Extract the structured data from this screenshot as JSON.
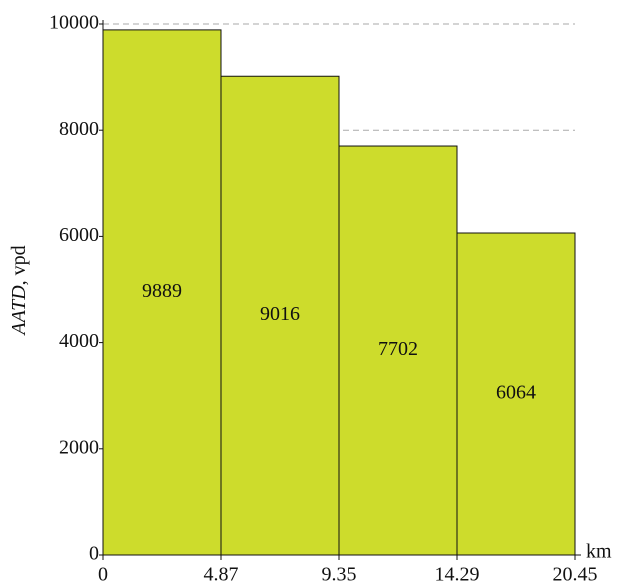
{
  "chart_data": {
    "type": "histogram",
    "bins": [
      0,
      4.87,
      9.35,
      14.29,
      20.45
    ],
    "values": [
      9889,
      9016,
      7702,
      6064
    ],
    "color": "#cddc2c",
    "ylabel": [
      "AATD",
      ", vpd"
    ],
    "xlabel": "km",
    "ylim": [
      0,
      10000
    ],
    "yticks": [
      0,
      2000,
      4000,
      6000,
      8000,
      10000
    ],
    "grid": true,
    "value_labels_shown": true
  }
}
